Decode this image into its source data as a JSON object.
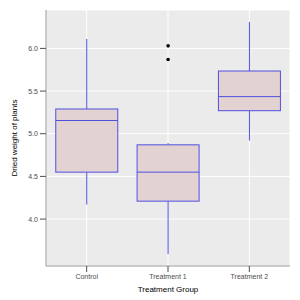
{
  "chart_data": {
    "type": "box",
    "x_label": "Treatment Group",
    "y_label": "Dried weight of plants",
    "categories": [
      "Control",
      "Treatment 1",
      "Treatment 2"
    ],
    "boxes": [
      {
        "whisker_low": 4.17,
        "q1": 4.55,
        "median": 5.155,
        "q3": 5.29,
        "whisker_high": 6.11,
        "outliers": []
      },
      {
        "whisker_low": 3.59,
        "q1": 4.21,
        "median": 4.55,
        "q3": 4.87,
        "whisker_high": 4.89,
        "outliers": [
          5.87,
          6.03
        ]
      },
      {
        "whisker_low": 4.92,
        "q1": 5.27,
        "median": 5.435,
        "q3": 5.735,
        "whisker_high": 6.31,
        "outliers": []
      }
    ],
    "color": "#5050e0",
    "ylim": [
      3.45,
      6.45
    ],
    "yticks": [
      {
        "value": 4,
        "label": "4.0"
      },
      {
        "value": 4.5,
        "label": "4.5"
      },
      {
        "value": 5,
        "label": "5.0"
      },
      {
        "value": 5.5,
        "label": "5.5"
      },
      {
        "value": 6,
        "label": "6.0"
      }
    ],
    "grid": true
  }
}
